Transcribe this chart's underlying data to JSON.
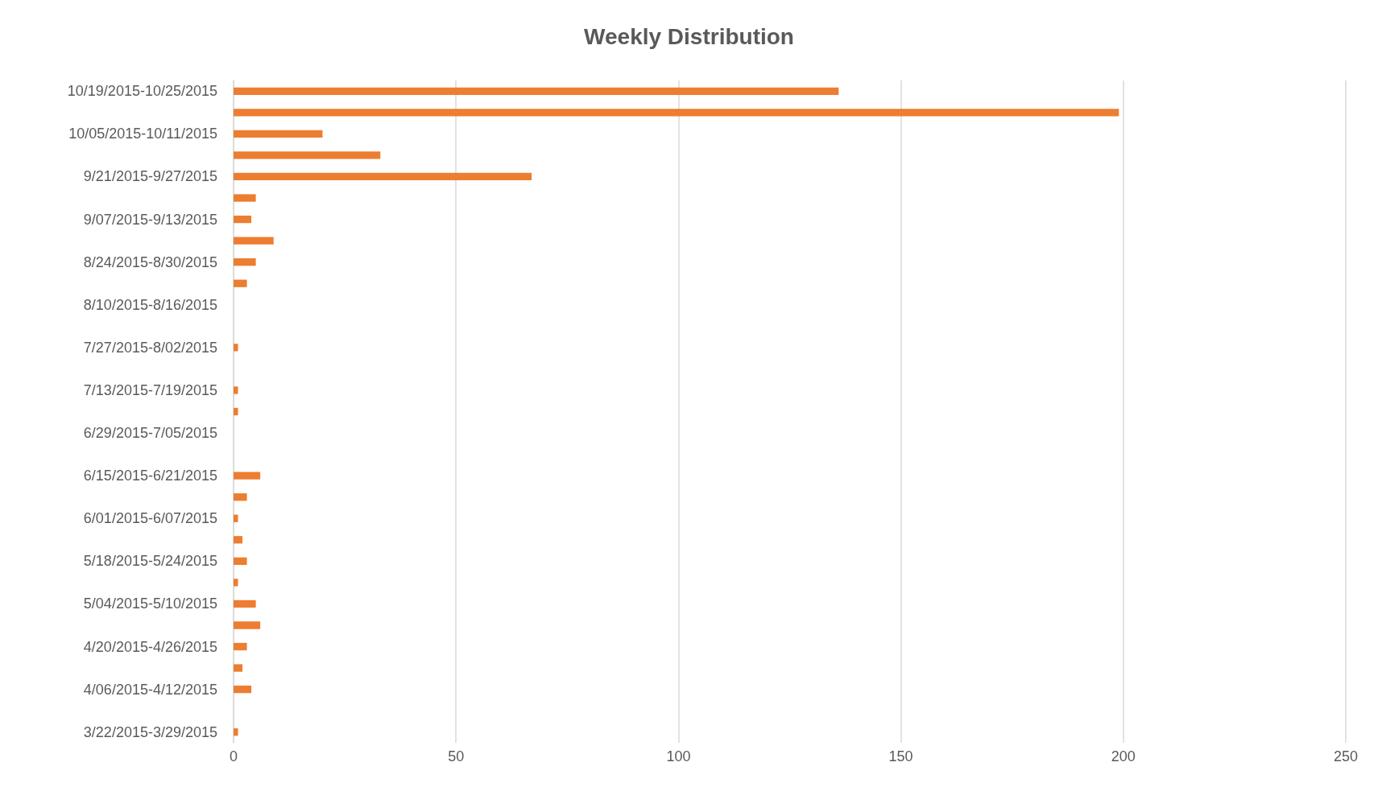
{
  "chart_data": {
    "type": "bar",
    "orientation": "horizontal",
    "title": "Weekly Distribution",
    "categories": [
      "10/19/2015-10/25/2015",
      null,
      "10/05/2015-10/11/2015",
      null,
      "9/21/2015-9/27/2015",
      null,
      "9/07/2015-9/13/2015",
      null,
      "8/24/2015-8/30/2015",
      null,
      "8/10/2015-8/16/2015",
      null,
      "7/27/2015-8/02/2015",
      null,
      "7/13/2015-7/19/2015",
      null,
      "6/29/2015-7/05/2015",
      null,
      "6/15/2015-6/21/2015",
      null,
      "6/01/2015-6/07/2015",
      null,
      "5/18/2015-5/24/2015",
      null,
      "5/04/2015-5/10/2015",
      null,
      "4/20/2015-4/26/2015",
      null,
      "4/06/2015-4/12/2015",
      null,
      "3/22/2015-3/29/2015"
    ],
    "values": [
      136,
      199,
      20,
      33,
      67,
      5,
      4,
      9,
      5,
      3,
      0,
      0,
      1,
      0,
      1,
      1,
      0,
      0,
      6,
      3,
      1,
      2,
      3,
      1,
      5,
      6,
      3,
      2,
      4,
      0,
      1
    ],
    "color": "#ed7d31",
    "xlim": [
      0,
      250
    ],
    "xticks": [
      0,
      50,
      100,
      150,
      200,
      250
    ],
    "grid": "x"
  }
}
